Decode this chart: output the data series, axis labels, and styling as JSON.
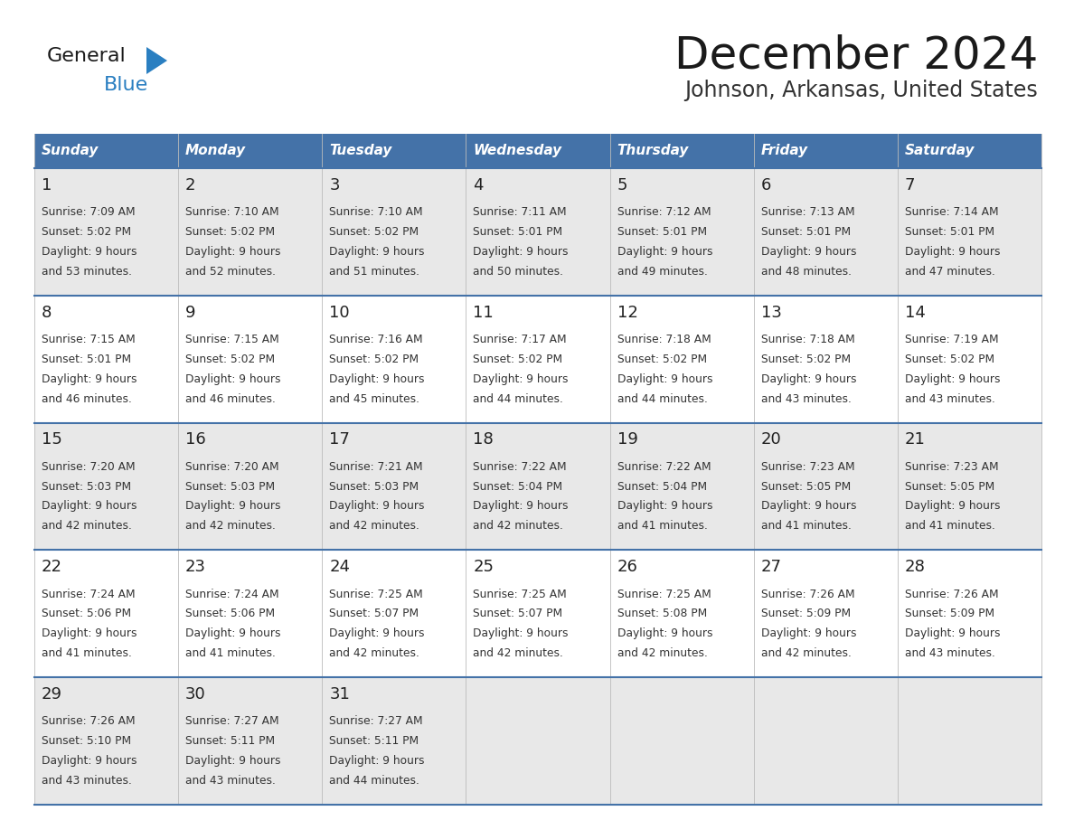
{
  "title": "December 2024",
  "subtitle": "Johnson, Arkansas, United States",
  "header_bg": "#4472a8",
  "header_text_color": "#ffffff",
  "days_of_week": [
    "Sunday",
    "Monday",
    "Tuesday",
    "Wednesday",
    "Thursday",
    "Friday",
    "Saturday"
  ],
  "cell_bg_odd": "#e8e8e8",
  "cell_bg_even": "#ffffff",
  "cell_border_color": "#3a6090",
  "row_border_color": "#4472a8",
  "title_color": "#1a1a1a",
  "subtitle_color": "#333333",
  "day_num_color": "#222222",
  "info_color": "#333333",
  "logo_general_color": "#1a1a1a",
  "logo_blue_color": "#2a7fc1",
  "calendar_data": [
    [
      {
        "day": 1,
        "sunrise": "7:09 AM",
        "sunset": "5:02 PM",
        "daylight_h": "9 hours",
        "daylight_m": "and 53 minutes."
      },
      {
        "day": 2,
        "sunrise": "7:10 AM",
        "sunset": "5:02 PM",
        "daylight_h": "9 hours",
        "daylight_m": "and 52 minutes."
      },
      {
        "day": 3,
        "sunrise": "7:10 AM",
        "sunset": "5:02 PM",
        "daylight_h": "9 hours",
        "daylight_m": "and 51 minutes."
      },
      {
        "day": 4,
        "sunrise": "7:11 AM",
        "sunset": "5:01 PM",
        "daylight_h": "9 hours",
        "daylight_m": "and 50 minutes."
      },
      {
        "day": 5,
        "sunrise": "7:12 AM",
        "sunset": "5:01 PM",
        "daylight_h": "9 hours",
        "daylight_m": "and 49 minutes."
      },
      {
        "day": 6,
        "sunrise": "7:13 AM",
        "sunset": "5:01 PM",
        "daylight_h": "9 hours",
        "daylight_m": "and 48 minutes."
      },
      {
        "day": 7,
        "sunrise": "7:14 AM",
        "sunset": "5:01 PM",
        "daylight_h": "9 hours",
        "daylight_m": "and 47 minutes."
      }
    ],
    [
      {
        "day": 8,
        "sunrise": "7:15 AM",
        "sunset": "5:01 PM",
        "daylight_h": "9 hours",
        "daylight_m": "and 46 minutes."
      },
      {
        "day": 9,
        "sunrise": "7:15 AM",
        "sunset": "5:02 PM",
        "daylight_h": "9 hours",
        "daylight_m": "and 46 minutes."
      },
      {
        "day": 10,
        "sunrise": "7:16 AM",
        "sunset": "5:02 PM",
        "daylight_h": "9 hours",
        "daylight_m": "and 45 minutes."
      },
      {
        "day": 11,
        "sunrise": "7:17 AM",
        "sunset": "5:02 PM",
        "daylight_h": "9 hours",
        "daylight_m": "and 44 minutes."
      },
      {
        "day": 12,
        "sunrise": "7:18 AM",
        "sunset": "5:02 PM",
        "daylight_h": "9 hours",
        "daylight_m": "and 44 minutes."
      },
      {
        "day": 13,
        "sunrise": "7:18 AM",
        "sunset": "5:02 PM",
        "daylight_h": "9 hours",
        "daylight_m": "and 43 minutes."
      },
      {
        "day": 14,
        "sunrise": "7:19 AM",
        "sunset": "5:02 PM",
        "daylight_h": "9 hours",
        "daylight_m": "and 43 minutes."
      }
    ],
    [
      {
        "day": 15,
        "sunrise": "7:20 AM",
        "sunset": "5:03 PM",
        "daylight_h": "9 hours",
        "daylight_m": "and 42 minutes."
      },
      {
        "day": 16,
        "sunrise": "7:20 AM",
        "sunset": "5:03 PM",
        "daylight_h": "9 hours",
        "daylight_m": "and 42 minutes."
      },
      {
        "day": 17,
        "sunrise": "7:21 AM",
        "sunset": "5:03 PM",
        "daylight_h": "9 hours",
        "daylight_m": "and 42 minutes."
      },
      {
        "day": 18,
        "sunrise": "7:22 AM",
        "sunset": "5:04 PM",
        "daylight_h": "9 hours",
        "daylight_m": "and 42 minutes."
      },
      {
        "day": 19,
        "sunrise": "7:22 AM",
        "sunset": "5:04 PM",
        "daylight_h": "9 hours",
        "daylight_m": "and 41 minutes."
      },
      {
        "day": 20,
        "sunrise": "7:23 AM",
        "sunset": "5:05 PM",
        "daylight_h": "9 hours",
        "daylight_m": "and 41 minutes."
      },
      {
        "day": 21,
        "sunrise": "7:23 AM",
        "sunset": "5:05 PM",
        "daylight_h": "9 hours",
        "daylight_m": "and 41 minutes."
      }
    ],
    [
      {
        "day": 22,
        "sunrise": "7:24 AM",
        "sunset": "5:06 PM",
        "daylight_h": "9 hours",
        "daylight_m": "and 41 minutes."
      },
      {
        "day": 23,
        "sunrise": "7:24 AM",
        "sunset": "5:06 PM",
        "daylight_h": "9 hours",
        "daylight_m": "and 41 minutes."
      },
      {
        "day": 24,
        "sunrise": "7:25 AM",
        "sunset": "5:07 PM",
        "daylight_h": "9 hours",
        "daylight_m": "and 42 minutes."
      },
      {
        "day": 25,
        "sunrise": "7:25 AM",
        "sunset": "5:07 PM",
        "daylight_h": "9 hours",
        "daylight_m": "and 42 minutes."
      },
      {
        "day": 26,
        "sunrise": "7:25 AM",
        "sunset": "5:08 PM",
        "daylight_h": "9 hours",
        "daylight_m": "and 42 minutes."
      },
      {
        "day": 27,
        "sunrise": "7:26 AM",
        "sunset": "5:09 PM",
        "daylight_h": "9 hours",
        "daylight_m": "and 42 minutes."
      },
      {
        "day": 28,
        "sunrise": "7:26 AM",
        "sunset": "5:09 PM",
        "daylight_h": "9 hours",
        "daylight_m": "and 43 minutes."
      }
    ],
    [
      {
        "day": 29,
        "sunrise": "7:26 AM",
        "sunset": "5:10 PM",
        "daylight_h": "9 hours",
        "daylight_m": "and 43 minutes."
      },
      {
        "day": 30,
        "sunrise": "7:27 AM",
        "sunset": "5:11 PM",
        "daylight_h": "9 hours",
        "daylight_m": "and 43 minutes."
      },
      {
        "day": 31,
        "sunrise": "7:27 AM",
        "sunset": "5:11 PM",
        "daylight_h": "9 hours",
        "daylight_m": "and 44 minutes."
      },
      null,
      null,
      null,
      null
    ]
  ]
}
